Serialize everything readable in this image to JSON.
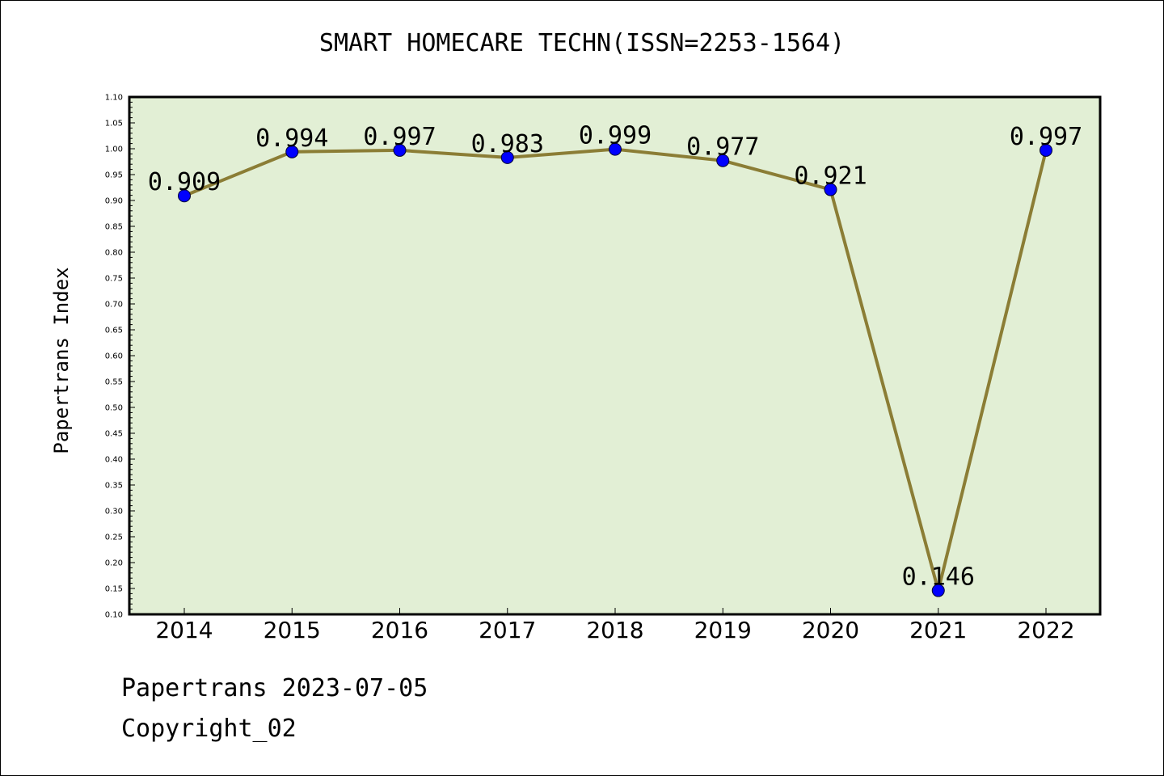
{
  "chart_data": {
    "type": "line",
    "title": "SMART HOMECARE TECHN(ISSN=2253-1564)",
    "xlabel": "",
    "ylabel": "Papertrans Index",
    "categories": [
      "2014",
      "2015",
      "2016",
      "2017",
      "2018",
      "2019",
      "2020",
      "2021",
      "2022"
    ],
    "series": [
      {
        "values": [
          0.909,
          0.994,
          0.997,
          0.983,
          0.999,
          0.977,
          0.921,
          0.146,
          0.997
        ],
        "labels": [
          "0.909",
          "0.994",
          "0.997",
          "0.983",
          "0.999",
          "0.977",
          "0.921",
          "0.146",
          "0.997"
        ]
      }
    ],
    "ylim": [
      0.1,
      1.1
    ],
    "yticks": [
      "0.10",
      "0.15",
      "0.20",
      "0.25",
      "0.30",
      "0.35",
      "0.40",
      "0.45",
      "0.50",
      "0.55",
      "0.60",
      "0.65",
      "0.70",
      "0.75",
      "0.80",
      "0.85",
      "0.90",
      "0.95",
      "1.00",
      "1.05",
      "1.10"
    ],
    "grid": false,
    "colors": {
      "line": "#8b7d35",
      "marker": "#0000ff",
      "plot_background": "#e2efd5"
    }
  },
  "footer": {
    "date": "Papertrans 2023-07-05",
    "copyright": "Copyright_02"
  }
}
